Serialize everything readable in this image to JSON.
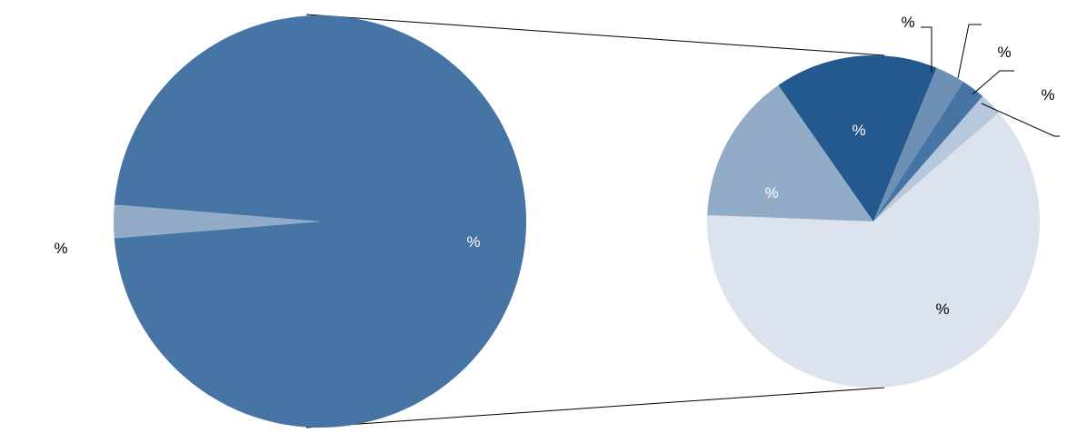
{
  "chart_data": [
    {
      "type": "pie",
      "title": "",
      "slices": [
        {
          "label": "",
          "value": 97.4,
          "color": "#4674a4",
          "display": "%"
        },
        {
          "label": "",
          "value": 2.6,
          "color": "#92abc6",
          "display": "%"
        }
      ]
    },
    {
      "type": "pie",
      "title": "",
      "slices": [
        {
          "label": "",
          "value": 62.0,
          "color": "#dce3ee",
          "display": "%"
        },
        {
          "label": "",
          "value": 14.7,
          "color": "#92abc6",
          "display": "%"
        },
        {
          "label": "",
          "value": 15.9,
          "color": "#245990",
          "display": "%"
        },
        {
          "label": "",
          "value": 2.9,
          "color": "#6f90b5",
          "display": "%"
        },
        {
          "label": "",
          "value": 2.3,
          "color": "#4674a4",
          "display": "%"
        },
        {
          "label": "",
          "value": 2.2,
          "color": "#b8c8dc",
          "display": "%"
        }
      ]
    }
  ]
}
